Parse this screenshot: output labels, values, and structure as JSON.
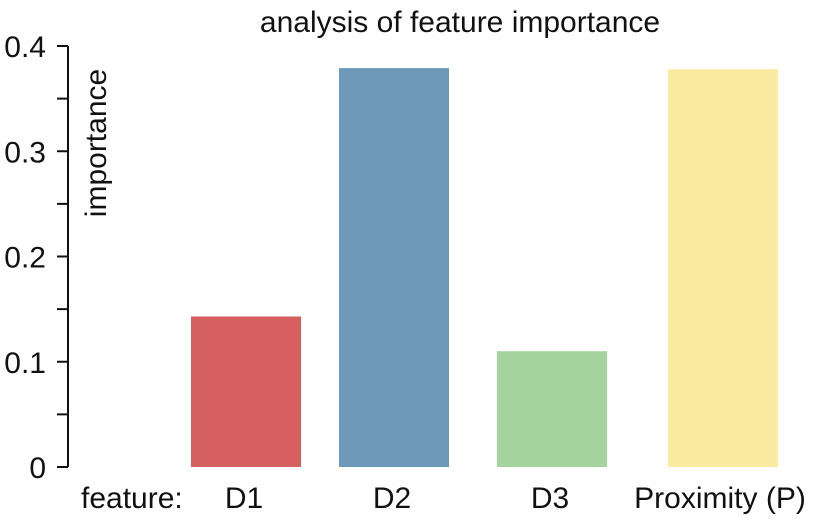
{
  "chart_data": {
    "type": "bar",
    "title": "analysis of feature importance",
    "ylabel": "importance",
    "xlabel": "feature:",
    "categories": [
      "D1",
      "D2",
      "D3",
      "Proximity (P)"
    ],
    "values": [
      0.143,
      0.379,
      0.11,
      0.378
    ],
    "colors": [
      "#d66060",
      "#6e9aba",
      "#a2d49b",
      "#faeba0"
    ],
    "ylim": [
      0,
      0.4
    ],
    "yticks": [
      {
        "value": 0,
        "label": "0"
      },
      {
        "value": 0.1,
        "label": "0.1"
      },
      {
        "value": 0.2,
        "label": "0.2"
      },
      {
        "value": 0.3,
        "label": "0.3"
      },
      {
        "value": 0.4,
        "label": "0.4"
      }
    ],
    "minor_tick_step": 0.05,
    "grid": false,
    "legend": "none"
  }
}
